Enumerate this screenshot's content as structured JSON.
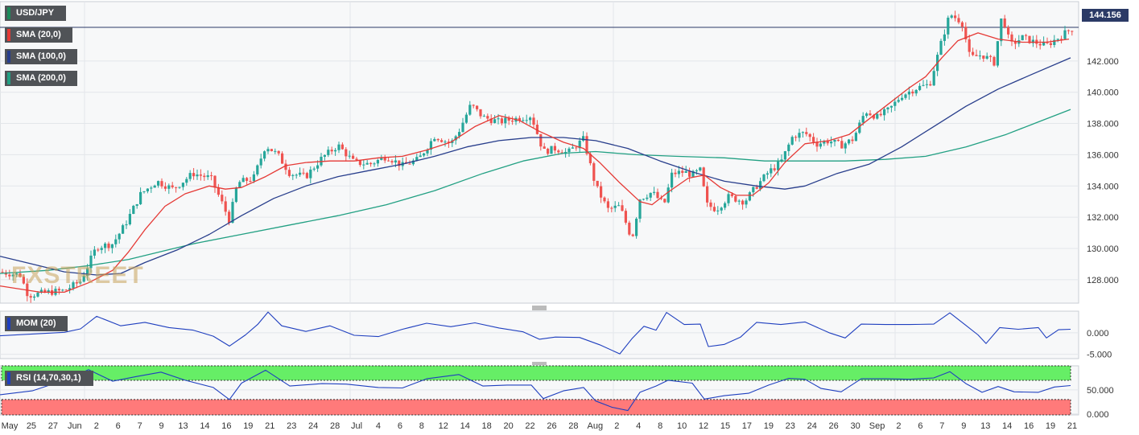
{
  "colors": {
    "up": "#26a69a",
    "down": "#ef5350",
    "sma20": "#e53935",
    "sma100": "#283e8c",
    "sma200": "#22a083",
    "mom": "#1f3fbf",
    "rsi": "#1f3fbf",
    "rsi_overbought": "#66ee66",
    "rsi_oversold": "#ff7a7a",
    "panel_bg": "#f7f8f9",
    "grid": "#e3e6ea"
  },
  "labels": {
    "symbol": "USD/JPY",
    "sma20": "SMA (20,0)",
    "sma100": "SMA (100,0)",
    "sma200": "SMA (200,0)",
    "mom": "MOM (20)",
    "rsi": "RSI (14,70,30,1)",
    "last_price": "144.156",
    "watermark": "FXSTREET"
  },
  "chart_data": [
    {
      "type": "candlestick",
      "title": "USD/JPY",
      "ylim": [
        126.5,
        145.8
      ],
      "grid": true,
      "y_ticks": [
        "128.000",
        "130.000",
        "132.000",
        "134.000",
        "136.000",
        "138.000",
        "140.000",
        "142.000"
      ],
      "y_tick_values": [
        128,
        130,
        132,
        134,
        136,
        138,
        140,
        142
      ],
      "last_price": 144.156,
      "x_tick_labels": [
        "May",
        "25",
        "27",
        "Jun",
        "2",
        "6",
        "7",
        "9",
        "13",
        "14",
        "16",
        "19",
        "21",
        "23",
        "24",
        "28",
        "Jul",
        "4",
        "6",
        "8",
        "12",
        "14",
        "18",
        "20",
        "22",
        "26",
        "28",
        "Aug",
        "2",
        "4",
        "8",
        "10",
        "12",
        "15",
        "17",
        "19",
        "23",
        "24",
        "26",
        "30",
        "Sep",
        "2",
        "6",
        "7",
        "9",
        "13",
        "14",
        "16",
        "19",
        "21"
      ],
      "price_path": [
        [
          0,
          128.5
        ],
        [
          25,
          128.3
        ],
        [
          35,
          127.0
        ],
        [
          60,
          127.2
        ],
        [
          80,
          127.3
        ],
        [
          100,
          127.9
        ],
        [
          120,
          130.1
        ],
        [
          140,
          130.3
        ],
        [
          155,
          131.5
        ],
        [
          175,
          133.5
        ],
        [
          195,
          134.3
        ],
        [
          215,
          133.8
        ],
        [
          240,
          134.8
        ],
        [
          262,
          134.5
        ],
        [
          275,
          133.0
        ],
        [
          285,
          131.8
        ],
        [
          295,
          134.2
        ],
        [
          315,
          134.5
        ],
        [
          330,
          136.6
        ],
        [
          345,
          136.0
        ],
        [
          360,
          134.8
        ],
        [
          380,
          134.6
        ],
        [
          400,
          135.8
        ],
        [
          420,
          136.6
        ],
        [
          440,
          135.5
        ],
        [
          460,
          135.4
        ],
        [
          480,
          135.9
        ],
        [
          500,
          135.3
        ],
        [
          520,
          135.7
        ],
        [
          540,
          137.2
        ],
        [
          560,
          136.7
        ],
        [
          570,
          137.5
        ],
        [
          585,
          139.2
        ],
        [
          600,
          138.4
        ],
        [
          620,
          138.1
        ],
        [
          640,
          138.3
        ],
        [
          660,
          138.5
        ],
        [
          675,
          136.2
        ],
        [
          690,
          136.4
        ],
        [
          705,
          136.1
        ],
        [
          725,
          137.0
        ],
        [
          740,
          134.0
        ],
        [
          755,
          132.5
        ],
        [
          770,
          132.7
        ],
        [
          785,
          130.6
        ],
        [
          795,
          133.2
        ],
        [
          810,
          133.6
        ],
        [
          825,
          132.8
        ],
        [
          835,
          134.8
        ],
        [
          850,
          134.9
        ],
        [
          860,
          134.7
        ],
        [
          870,
          135.0
        ],
        [
          878,
          132.8
        ],
        [
          890,
          132.5
        ],
        [
          905,
          133.3
        ],
        [
          925,
          133.0
        ],
        [
          940,
          134.0
        ],
        [
          955,
          134.9
        ],
        [
          970,
          135.5
        ],
        [
          985,
          137.2
        ],
        [
          1000,
          137.4
        ],
        [
          1015,
          136.7
        ],
        [
          1030,
          136.9
        ],
        [
          1045,
          136.6
        ],
        [
          1060,
          137.0
        ],
        [
          1075,
          138.8
        ],
        [
          1090,
          138.4
        ],
        [
          1105,
          138.9
        ],
        [
          1120,
          139.8
        ],
        [
          1140,
          140.3
        ],
        [
          1155,
          140.5
        ],
        [
          1170,
          143.3
        ],
        [
          1180,
          145.0
        ],
        [
          1195,
          144.5
        ],
        [
          1205,
          142.2
        ],
        [
          1220,
          142.4
        ],
        [
          1235,
          141.9
        ],
        [
          1245,
          145.0
        ],
        [
          1255,
          143.0
        ],
        [
          1270,
          143.5
        ],
        [
          1285,
          143.2
        ],
        [
          1300,
          143.0
        ],
        [
          1315,
          143.5
        ],
        [
          1332,
          144.1
        ]
      ],
      "sma20_path": [
        [
          0,
          127.6
        ],
        [
          50,
          127.2
        ],
        [
          80,
          127.2
        ],
        [
          110,
          127.8
        ],
        [
          140,
          128.6
        ],
        [
          160,
          129.8
        ],
        [
          180,
          131.2
        ],
        [
          205,
          132.7
        ],
        [
          230,
          133.5
        ],
        [
          260,
          134.0
        ],
        [
          280,
          133.8
        ],
        [
          300,
          133.9
        ],
        [
          330,
          134.6
        ],
        [
          355,
          135.3
        ],
        [
          380,
          135.5
        ],
        [
          410,
          135.6
        ],
        [
          440,
          135.6
        ],
        [
          470,
          135.8
        ],
        [
          500,
          135.9
        ],
        [
          530,
          136.3
        ],
        [
          560,
          136.8
        ],
        [
          590,
          137.8
        ],
        [
          620,
          138.5
        ],
        [
          645,
          138.2
        ],
        [
          670,
          137.5
        ],
        [
          700,
          136.8
        ],
        [
          725,
          136.4
        ],
        [
          745,
          135.5
        ],
        [
          770,
          134.2
        ],
        [
          795,
          133.0
        ],
        [
          810,
          132.8
        ],
        [
          830,
          133.6
        ],
        [
          855,
          134.5
        ],
        [
          875,
          134.7
        ],
        [
          895,
          133.9
        ],
        [
          915,
          133.4
        ],
        [
          935,
          133.4
        ],
        [
          955,
          134.2
        ],
        [
          975,
          135.5
        ],
        [
          1000,
          136.7
        ],
        [
          1030,
          136.9
        ],
        [
          1055,
          137.3
        ],
        [
          1080,
          138.3
        ],
        [
          1105,
          139.3
        ],
        [
          1130,
          140.3
        ],
        [
          1150,
          141.0
        ],
        [
          1170,
          142.2
        ],
        [
          1190,
          143.3
        ],
        [
          1215,
          143.8
        ],
        [
          1240,
          143.4
        ],
        [
          1270,
          143.2
        ],
        [
          1300,
          143.2
        ],
        [
          1328,
          143.4
        ]
      ],
      "sma100_path": [
        [
          0,
          129.5
        ],
        [
          40,
          129.0
        ],
        [
          80,
          128.5
        ],
        [
          120,
          128.3
        ],
        [
          150,
          128.4
        ],
        [
          180,
          129.1
        ],
        [
          220,
          129.9
        ],
        [
          260,
          130.9
        ],
        [
          300,
          132.1
        ],
        [
          340,
          133.2
        ],
        [
          380,
          134.0
        ],
        [
          420,
          134.6
        ],
        [
          460,
          135.0
        ],
        [
          500,
          135.4
        ],
        [
          540,
          135.9
        ],
        [
          580,
          136.5
        ],
        [
          620,
          136.9
        ],
        [
          660,
          137.1
        ],
        [
          700,
          137.1
        ],
        [
          740,
          136.9
        ],
        [
          780,
          136.4
        ],
        [
          820,
          135.6
        ],
        [
          860,
          134.9
        ],
        [
          900,
          134.3
        ],
        [
          940,
          134.0
        ],
        [
          975,
          133.8
        ],
        [
          1000,
          134.0
        ],
        [
          1040,
          134.8
        ],
        [
          1080,
          135.4
        ],
        [
          1120,
          136.5
        ],
        [
          1160,
          137.8
        ],
        [
          1200,
          139.1
        ],
        [
          1240,
          140.2
        ],
        [
          1280,
          141.1
        ],
        [
          1330,
          142.2
        ]
      ],
      "sma200_path": [
        [
          0,
          128.4
        ],
        [
          60,
          128.6
        ],
        [
          110,
          128.9
        ],
        [
          160,
          129.3
        ],
        [
          200,
          129.8
        ],
        [
          240,
          130.3
        ],
        [
          300,
          130.9
        ],
        [
          360,
          131.5
        ],
        [
          420,
          132.1
        ],
        [
          480,
          132.8
        ],
        [
          540,
          133.7
        ],
        [
          600,
          134.8
        ],
        [
          650,
          135.6
        ],
        [
          700,
          136.1
        ],
        [
          740,
          136.2
        ],
        [
          790,
          136.0
        ],
        [
          840,
          135.9
        ],
        [
          900,
          135.8
        ],
        [
          950,
          135.6
        ],
        [
          1000,
          135.6
        ],
        [
          1050,
          135.6
        ],
        [
          1100,
          135.7
        ],
        [
          1150,
          135.9
        ],
        [
          1200,
          136.5
        ],
        [
          1250,
          137.3
        ],
        [
          1290,
          138.1
        ],
        [
          1330,
          138.9
        ]
      ]
    },
    {
      "type": "line",
      "title": "MOM (20)",
      "ylim": [
        -6.0,
        5.0
      ],
      "y_ticks": [
        "0.000",
        "-5.000"
      ],
      "y_tick_values": [
        0,
        -5
      ],
      "series_path": [
        [
          0,
          -0.7
        ],
        [
          40,
          -0.3
        ],
        [
          80,
          0.1
        ],
        [
          100,
          0.9
        ],
        [
          120,
          3.8
        ],
        [
          150,
          1.6
        ],
        [
          180,
          2.4
        ],
        [
          210,
          1.2
        ],
        [
          240,
          0.6
        ],
        [
          265,
          -0.8
        ],
        [
          285,
          -3.1
        ],
        [
          305,
          -0.5
        ],
        [
          320,
          1.9
        ],
        [
          333,
          4.8
        ],
        [
          350,
          1.6
        ],
        [
          380,
          0.3
        ],
        [
          410,
          1.6
        ],
        [
          440,
          -0.6
        ],
        [
          470,
          -0.9
        ],
        [
          500,
          0.8
        ],
        [
          530,
          2.2
        ],
        [
          560,
          1.4
        ],
        [
          590,
          2.3
        ],
        [
          620,
          1.1
        ],
        [
          650,
          0.2
        ],
        [
          670,
          -1.5
        ],
        [
          690,
          -1.0
        ],
        [
          720,
          -1.1
        ],
        [
          745,
          -2.8
        ],
        [
          770,
          -4.9
        ],
        [
          785,
          -1.4
        ],
        [
          800,
          1.5
        ],
        [
          815,
          0.6
        ],
        [
          828,
          4.7
        ],
        [
          850,
          1.9
        ],
        [
          870,
          2.0
        ],
        [
          880,
          -3.2
        ],
        [
          900,
          -2.7
        ],
        [
          920,
          -1.0
        ],
        [
          940,
          2.4
        ],
        [
          970,
          1.9
        ],
        [
          1000,
          2.5
        ],
        [
          1030,
          0.0
        ],
        [
          1050,
          -1.2
        ],
        [
          1070,
          2.0
        ],
        [
          1100,
          1.9
        ],
        [
          1130,
          1.9
        ],
        [
          1160,
          2.0
        ],
        [
          1180,
          4.6
        ],
        [
          1200,
          1.7
        ],
        [
          1215,
          -0.5
        ],
        [
          1225,
          -2.5
        ],
        [
          1242,
          1.2
        ],
        [
          1265,
          0.8
        ],
        [
          1290,
          1.2
        ],
        [
          1300,
          -1.2
        ],
        [
          1315,
          0.7
        ],
        [
          1330,
          0.8
        ]
      ]
    },
    {
      "type": "line",
      "title": "RSI (14,70,30,1)",
      "ylim": [
        -2,
        100
      ],
      "y_ticks": [
        "50.000",
        "0.000"
      ],
      "y_tick_values": [
        50,
        0
      ],
      "overbought": 70,
      "oversold": 30,
      "series_path": [
        [
          0,
          40
        ],
        [
          40,
          48
        ],
        [
          80,
          70
        ],
        [
          110,
          92
        ],
        [
          140,
          68
        ],
        [
          170,
          78
        ],
        [
          200,
          87
        ],
        [
          230,
          70
        ],
        [
          265,
          55
        ],
        [
          285,
          30
        ],
        [
          300,
          64
        ],
        [
          330,
          91
        ],
        [
          360,
          58
        ],
        [
          400,
          63
        ],
        [
          430,
          62
        ],
        [
          470,
          55
        ],
        [
          500,
          54
        ],
        [
          530,
          73
        ],
        [
          570,
          82
        ],
        [
          600,
          58
        ],
        [
          630,
          60
        ],
        [
          660,
          60
        ],
        [
          675,
          32
        ],
        [
          700,
          48
        ],
        [
          725,
          55
        ],
        [
          740,
          27
        ],
        [
          760,
          14
        ],
        [
          780,
          7
        ],
        [
          795,
          45
        ],
        [
          815,
          58
        ],
        [
          830,
          70
        ],
        [
          860,
          64
        ],
        [
          875,
          31
        ],
        [
          900,
          38
        ],
        [
          930,
          43
        ],
        [
          955,
          60
        ],
        [
          980,
          74
        ],
        [
          1000,
          72
        ],
        [
          1020,
          53
        ],
        [
          1045,
          46
        ],
        [
          1070,
          73
        ],
        [
          1100,
          73
        ],
        [
          1130,
          72
        ],
        [
          1160,
          75
        ],
        [
          1180,
          88
        ],
        [
          1200,
          63
        ],
        [
          1220,
          45
        ],
        [
          1240,
          57
        ],
        [
          1260,
          46
        ],
        [
          1290,
          45
        ],
        [
          1310,
          56
        ],
        [
          1330,
          59
        ]
      ]
    }
  ]
}
